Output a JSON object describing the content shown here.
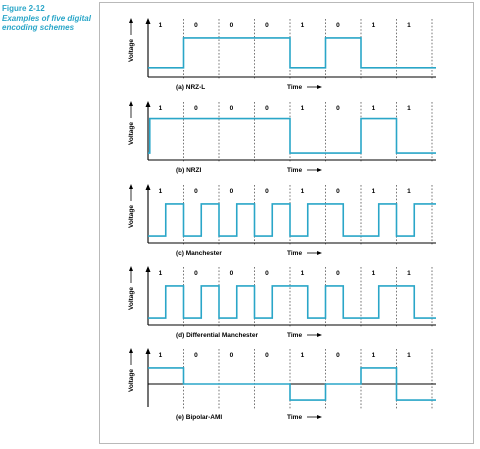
{
  "figure": {
    "number": "Figure 2-12",
    "caption": "Examples of five digital encoding schemes"
  },
  "bits": [
    "1",
    "0",
    "0",
    "0",
    "1",
    "0",
    "1",
    "1"
  ],
  "axis": {
    "ylabel": "Voltage",
    "xlabel": "Time"
  },
  "colors": {
    "signal": "#2aa6c8",
    "axis": "#000000",
    "divider": "#555555"
  },
  "panels": [
    {
      "id": "nrz-l",
      "label": "(a)  NRZ-L",
      "levels": [
        {
          "t": 0,
          "v": 0.2
        },
        {
          "t": 1,
          "v": 0.85
        },
        {
          "t": 4,
          "v": 0.2
        },
        {
          "t": 5,
          "v": 0.85
        },
        {
          "t": 6,
          "v": 0.2
        },
        {
          "t": 8,
          "v": 0.2
        }
      ]
    },
    {
      "id": "nrzi",
      "label": "(b)  NRZI",
      "levels": [
        {
          "t": 0,
          "v": 0.15
        },
        {
          "t": 0.05,
          "v": 0.9
        },
        {
          "t": 4,
          "v": 0.15
        },
        {
          "t": 6,
          "v": 0.9
        },
        {
          "t": 7,
          "v": 0.15
        },
        {
          "t": 8,
          "v": 0.15
        }
      ]
    },
    {
      "id": "manchester",
      "label": "(c)  Manchester",
      "levels": [
        {
          "t": 0,
          "v": 0.15
        },
        {
          "t": 0.5,
          "v": 0.85
        },
        {
          "t": 1,
          "v": 0.15
        },
        {
          "t": 1.5,
          "v": 0.85
        },
        {
          "t": 2,
          "v": 0.15
        },
        {
          "t": 2.5,
          "v": 0.85
        },
        {
          "t": 3,
          "v": 0.15
        },
        {
          "t": 3.5,
          "v": 0.85
        },
        {
          "t": 4,
          "v": 0.15
        },
        {
          "t": 4.5,
          "v": 0.85
        },
        {
          "t": 5.5,
          "v": 0.15
        },
        {
          "t": 6.5,
          "v": 0.85
        },
        {
          "t": 7,
          "v": 0.15
        },
        {
          "t": 7.5,
          "v": 0.85
        },
        {
          "t": 8,
          "v": 0.85
        }
      ]
    },
    {
      "id": "differential-manchester",
      "label": "(d)  Differential Manchester",
      "levels": [
        {
          "t": 0,
          "v": 0.15
        },
        {
          "t": 0.5,
          "v": 0.85
        },
        {
          "t": 1,
          "v": 0.15
        },
        {
          "t": 1.5,
          "v": 0.85
        },
        {
          "t": 2,
          "v": 0.15
        },
        {
          "t": 2.5,
          "v": 0.85
        },
        {
          "t": 3,
          "v": 0.15
        },
        {
          "t": 3.5,
          "v": 0.85
        },
        {
          "t": 4.5,
          "v": 0.15
        },
        {
          "t": 5,
          "v": 0.85
        },
        {
          "t": 5.5,
          "v": 0.15
        },
        {
          "t": 6.5,
          "v": 0.85
        },
        {
          "t": 7.5,
          "v": 0.15
        },
        {
          "t": 8,
          "v": 0.15
        }
      ]
    },
    {
      "id": "bipolar-ami",
      "label": "(e)  Bipolar-AMI",
      "levels": [
        {
          "t": 0,
          "v": 0.85
        },
        {
          "t": 1,
          "v": 0.5
        },
        {
          "t": 4,
          "v": 0.15
        },
        {
          "t": 5,
          "v": 0.5
        },
        {
          "t": 6,
          "v": 0.85
        },
        {
          "t": 7,
          "v": 0.15
        },
        {
          "t": 8,
          "v": 0.15
        }
      ]
    }
  ]
}
